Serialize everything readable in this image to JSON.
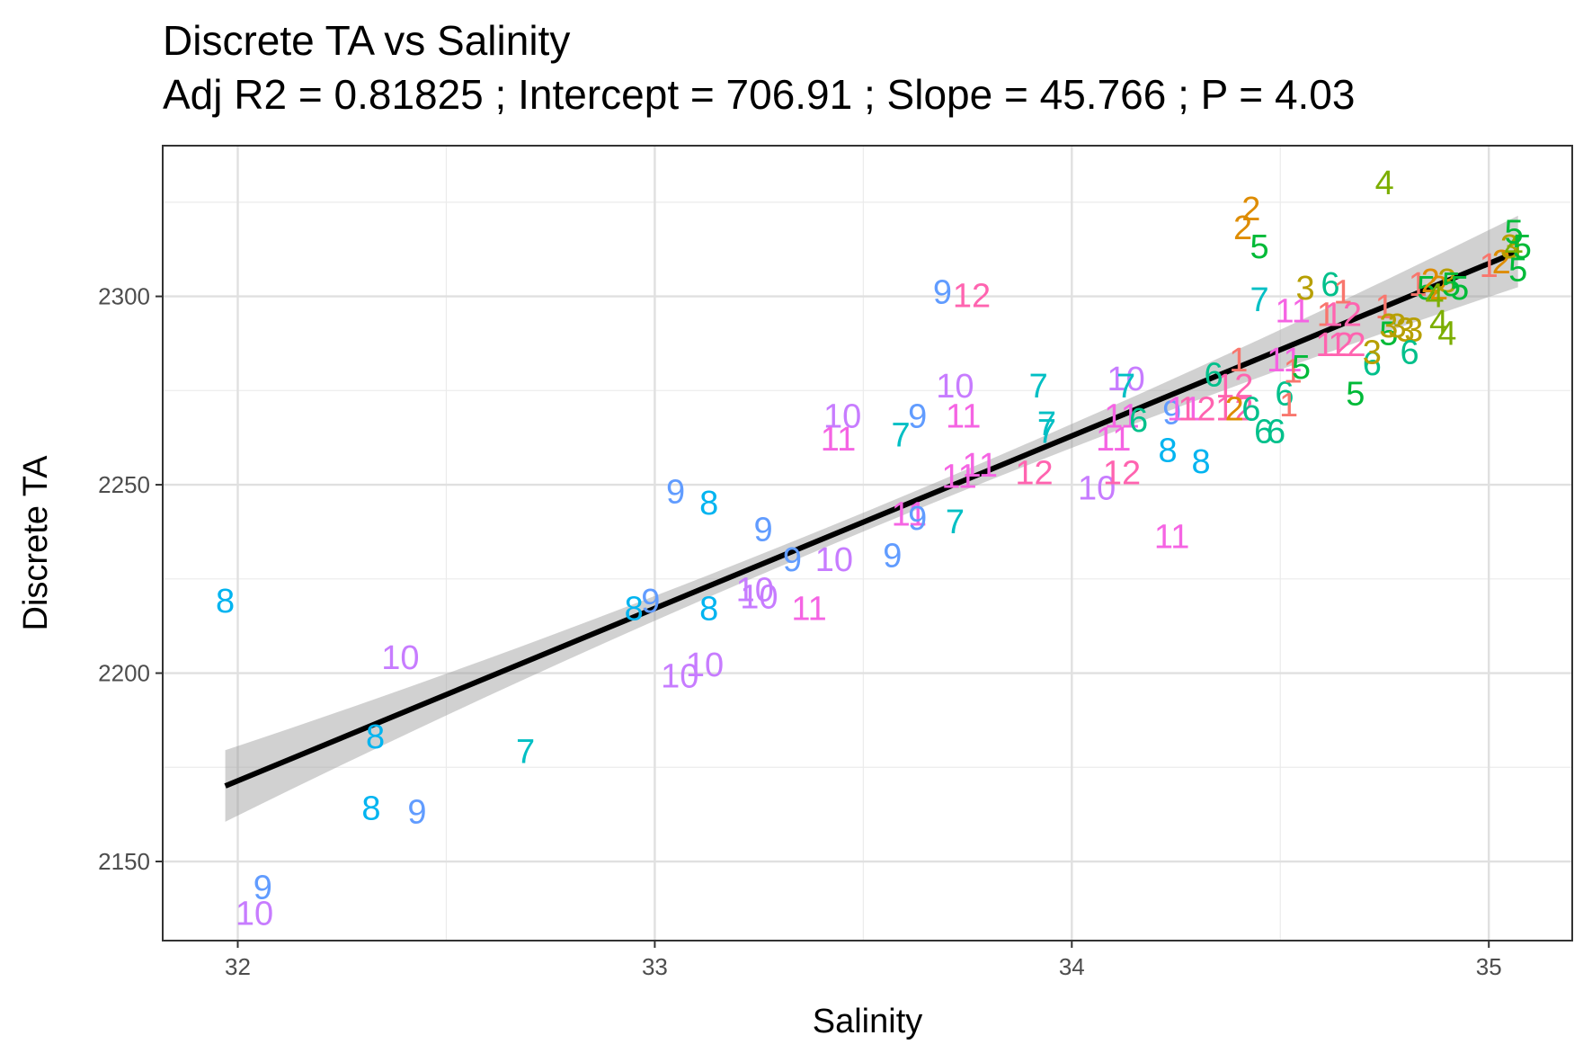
{
  "chart_data": {
    "type": "scatter",
    "title": "Discrete TA vs Salinity",
    "subtitle": "Adj R2 =  0.81825 ; Intercept = 706.91 ; Slope = 45.766 ; P = 4.03",
    "xlabel": "Salinity",
    "ylabel": "Discrete TA",
    "xlim": [
      31.82,
      35.2
    ],
    "ylim": [
      2129,
      2340
    ],
    "x_ticks": [
      32,
      33,
      34,
      35
    ],
    "y_ticks": [
      2150,
      2200,
      2250,
      2300
    ],
    "grid": true,
    "legend": "none",
    "point_marker": "text label (month number)",
    "fit": {
      "type": "linear",
      "intercept": 706.91,
      "slope": 45.766,
      "x_range": [
        31.97,
        35.07
      ],
      "ci_halfwidth_ends": 9.5,
      "ci_halfwidth_mid": 2.5
    },
    "label_colors": {
      "1": "#F8766D",
      "2": "#DE8C00",
      "3": "#B79F00",
      "4": "#7CAE00",
      "5": "#00BA38",
      "6": "#00C08B",
      "7": "#00BFC4",
      "8": "#00B4F0",
      "9": "#619CFF",
      "10": "#C77CFF",
      "11": "#F564E3",
      "12": "#FF64B0"
    },
    "points": [
      {
        "x": 31.97,
        "y": 2219,
        "label": "8"
      },
      {
        "x": 32.33,
        "y": 2183,
        "label": "8"
      },
      {
        "x": 32.32,
        "y": 2164,
        "label": "8"
      },
      {
        "x": 32.43,
        "y": 2163,
        "label": "9"
      },
      {
        "x": 32.06,
        "y": 2143,
        "label": "9"
      },
      {
        "x": 32.04,
        "y": 2136,
        "label": "10"
      },
      {
        "x": 32.39,
        "y": 2204,
        "label": "10"
      },
      {
        "x": 32.69,
        "y": 2179,
        "label": "7"
      },
      {
        "x": 32.95,
        "y": 2217,
        "label": "8"
      },
      {
        "x": 32.99,
        "y": 2219,
        "label": "9"
      },
      {
        "x": 33.05,
        "y": 2248,
        "label": "9"
      },
      {
        "x": 33.13,
        "y": 2245,
        "label": "8"
      },
      {
        "x": 33.13,
        "y": 2217,
        "label": "8"
      },
      {
        "x": 33.06,
        "y": 2199,
        "label": "10"
      },
      {
        "x": 33.12,
        "y": 2202,
        "label": "10"
      },
      {
        "x": 33.24,
        "y": 2222,
        "label": "10"
      },
      {
        "x": 33.25,
        "y": 2220,
        "label": "10"
      },
      {
        "x": 33.26,
        "y": 2238,
        "label": "9"
      },
      {
        "x": 33.33,
        "y": 2230,
        "label": "9"
      },
      {
        "x": 33.37,
        "y": 2217,
        "label": "11"
      },
      {
        "x": 33.43,
        "y": 2230,
        "label": "10"
      },
      {
        "x": 33.45,
        "y": 2268,
        "label": "10"
      },
      {
        "x": 33.44,
        "y": 2262,
        "label": "11"
      },
      {
        "x": 33.57,
        "y": 2231,
        "label": "9"
      },
      {
        "x": 33.59,
        "y": 2263,
        "label": "7"
      },
      {
        "x": 33.61,
        "y": 2242,
        "label": "11"
      },
      {
        "x": 33.63,
        "y": 2268,
        "label": "9"
      },
      {
        "x": 33.63,
        "y": 2241,
        "label": "9"
      },
      {
        "x": 33.72,
        "y": 2240,
        "label": "7"
      },
      {
        "x": 33.69,
        "y": 2301,
        "label": "9"
      },
      {
        "x": 33.76,
        "y": 2300,
        "label": "12"
      },
      {
        "x": 33.72,
        "y": 2276,
        "label": "10"
      },
      {
        "x": 33.74,
        "y": 2268,
        "label": "11"
      },
      {
        "x": 33.73,
        "y": 2252,
        "label": "11"
      },
      {
        "x": 33.78,
        "y": 2255,
        "label": "11"
      },
      {
        "x": 33.91,
        "y": 2253,
        "label": "12"
      },
      {
        "x": 33.92,
        "y": 2276,
        "label": "7"
      },
      {
        "x": 33.94,
        "y": 2266,
        "label": "7"
      },
      {
        "x": 33.94,
        "y": 2264,
        "label": "7"
      },
      {
        "x": 34.06,
        "y": 2249,
        "label": "10"
      },
      {
        "x": 34.12,
        "y": 2253,
        "label": "12"
      },
      {
        "x": 34.1,
        "y": 2262,
        "label": "11"
      },
      {
        "x": 34.12,
        "y": 2268,
        "label": "11"
      },
      {
        "x": 34.13,
        "y": 2278,
        "label": "10"
      },
      {
        "x": 34.13,
        "y": 2276,
        "label": "7"
      },
      {
        "x": 34.16,
        "y": 2267,
        "label": "6"
      },
      {
        "x": 34.23,
        "y": 2259,
        "label": "8"
      },
      {
        "x": 34.31,
        "y": 2256,
        "label": "8"
      },
      {
        "x": 34.24,
        "y": 2236,
        "label": "11"
      },
      {
        "x": 34.24,
        "y": 2269,
        "label": "9"
      },
      {
        "x": 34.27,
        "y": 2270,
        "label": "11"
      },
      {
        "x": 34.3,
        "y": 2270,
        "label": "12"
      },
      {
        "x": 34.39,
        "y": 2270,
        "label": "12"
      },
      {
        "x": 34.39,
        "y": 2276,
        "label": "12"
      },
      {
        "x": 34.39,
        "y": 2270,
        "label": "2"
      },
      {
        "x": 34.34,
        "y": 2279,
        "label": "6"
      },
      {
        "x": 34.4,
        "y": 2283,
        "label": "1"
      },
      {
        "x": 34.41,
        "y": 2318,
        "label": "2"
      },
      {
        "x": 34.43,
        "y": 2323,
        "label": "2"
      },
      {
        "x": 34.45,
        "y": 2313,
        "label": "5"
      },
      {
        "x": 34.45,
        "y": 2299,
        "label": "7"
      },
      {
        "x": 34.43,
        "y": 2270,
        "label": "6"
      },
      {
        "x": 34.46,
        "y": 2264,
        "label": "6"
      },
      {
        "x": 34.49,
        "y": 2264,
        "label": "6"
      },
      {
        "x": 34.51,
        "y": 2274,
        "label": "6"
      },
      {
        "x": 34.52,
        "y": 2271,
        "label": "1"
      },
      {
        "x": 34.51,
        "y": 2283,
        "label": "11"
      },
      {
        "x": 34.53,
        "y": 2280,
        "label": "1"
      },
      {
        "x": 34.55,
        "y": 2281,
        "label": "5"
      },
      {
        "x": 34.53,
        "y": 2296,
        "label": "11"
      },
      {
        "x": 34.56,
        "y": 2302,
        "label": "3"
      },
      {
        "x": 34.62,
        "y": 2303,
        "label": "6"
      },
      {
        "x": 34.65,
        "y": 2301,
        "label": "1"
      },
      {
        "x": 34.61,
        "y": 2295,
        "label": "1"
      },
      {
        "x": 34.65,
        "y": 2295,
        "label": "12"
      },
      {
        "x": 34.63,
        "y": 2287,
        "label": "12"
      },
      {
        "x": 34.66,
        "y": 2287,
        "label": "12"
      },
      {
        "x": 34.68,
        "y": 2274,
        "label": "5"
      },
      {
        "x": 34.72,
        "y": 2282,
        "label": "6"
      },
      {
        "x": 34.72,
        "y": 2285,
        "label": "3"
      },
      {
        "x": 34.75,
        "y": 2297,
        "label": "1"
      },
      {
        "x": 34.75,
        "y": 2330,
        "label": "4"
      },
      {
        "x": 34.76,
        "y": 2290,
        "label": "5"
      },
      {
        "x": 34.76,
        "y": 2292,
        "label": "3"
      },
      {
        "x": 34.78,
        "y": 2292,
        "label": "3"
      },
      {
        "x": 34.8,
        "y": 2291,
        "label": "3"
      },
      {
        "x": 34.82,
        "y": 2291,
        "label": "3"
      },
      {
        "x": 34.81,
        "y": 2285,
        "label": "6"
      },
      {
        "x": 34.83,
        "y": 2303,
        "label": "1"
      },
      {
        "x": 34.85,
        "y": 2302,
        "label": "5"
      },
      {
        "x": 34.86,
        "y": 2304,
        "label": "2"
      },
      {
        "x": 34.88,
        "y": 2302,
        "label": "2"
      },
      {
        "x": 34.87,
        "y": 2300,
        "label": "4"
      },
      {
        "x": 34.9,
        "y": 2304,
        "label": "3"
      },
      {
        "x": 34.91,
        "y": 2303,
        "label": "5"
      },
      {
        "x": 34.93,
        "y": 2302,
        "label": "5"
      },
      {
        "x": 34.88,
        "y": 2293,
        "label": "4"
      },
      {
        "x": 34.9,
        "y": 2290,
        "label": "4"
      },
      {
        "x": 35.0,
        "y": 2308,
        "label": "1"
      },
      {
        "x": 35.03,
        "y": 2309,
        "label": "2"
      },
      {
        "x": 35.05,
        "y": 2313,
        "label": "3"
      },
      {
        "x": 35.06,
        "y": 2313,
        "label": "4"
      },
      {
        "x": 35.06,
        "y": 2317,
        "label": "5"
      },
      {
        "x": 35.07,
        "y": 2307,
        "label": "5"
      },
      {
        "x": 35.08,
        "y": 2313,
        "label": "5"
      }
    ]
  }
}
